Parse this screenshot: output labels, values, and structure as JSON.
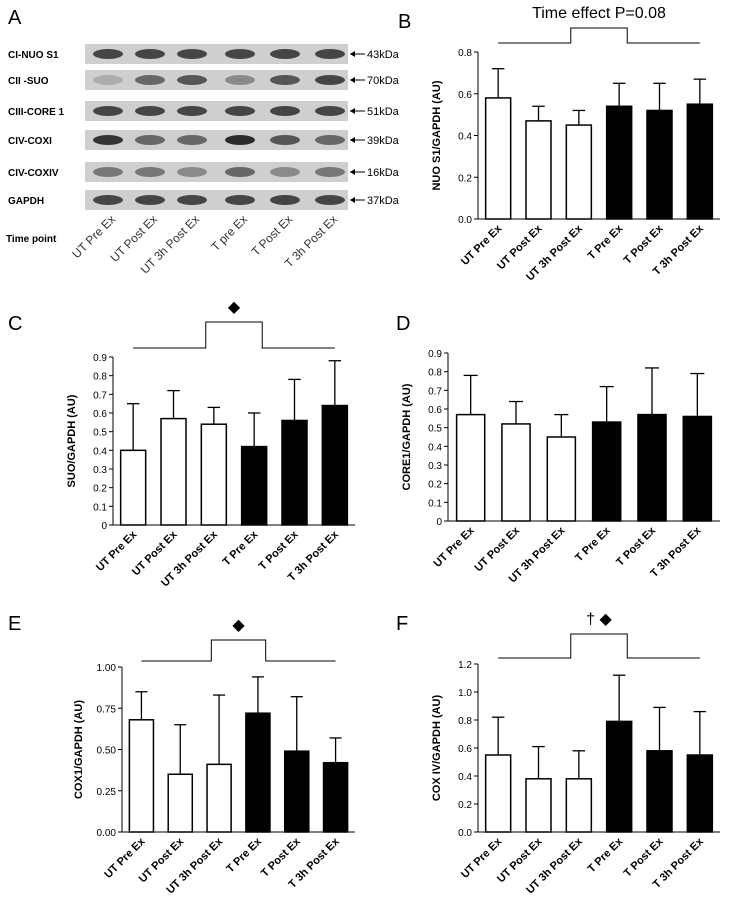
{
  "blot": {
    "panel_label": "A",
    "time_label": "Time point",
    "rows": [
      {
        "label": "CI-NUO S1",
        "size": "43kDa"
      },
      {
        "label": "CII -SUO",
        "size": "70kDa"
      },
      {
        "label": "CIII-CORE 1",
        "size": "51kDa"
      },
      {
        "label": "CIV-COXI",
        "size": "39kDa"
      },
      {
        "label": "CIV-COXIV",
        "size": "16kDa"
      },
      {
        "label": "GAPDH",
        "size": "37kDa"
      }
    ],
    "lanes": [
      "UT Pre Ex",
      "UT Post Ex",
      "UT 3h Post Ex",
      "T pre Ex",
      "T Post Ex",
      "T 3h Post Ex"
    ]
  },
  "chart_data": [
    {
      "type": "bar",
      "panel_label": "B",
      "annotation": "Time effect P=0.08",
      "ylabel": "NUO S1/GAPDH (AU)",
      "categories": [
        "UT Pre Ex",
        "UT Post Ex",
        "UT 3h Post Ex",
        "T Pre Ex",
        "T Post Ex",
        "T 3h Post Ex"
      ],
      "values": [
        0.58,
        0.47,
        0.45,
        0.54,
        0.52,
        0.55
      ],
      "errors": [
        0.14,
        0.07,
        0.07,
        0.11,
        0.13,
        0.12
      ],
      "colors": [
        "#ffffff",
        "#ffffff",
        "#ffffff",
        "#000000",
        "#000000",
        "#000000"
      ],
      "ylim": [
        0,
        0.8
      ],
      "yticks": [
        {
          "value": 0,
          "label": "0.0"
        },
        0.2,
        0.4,
        0.6,
        0.8
      ]
    },
    {
      "type": "bar",
      "panel_label": "C",
      "annotation": "◆",
      "ylabel": "SUO/GAPDH (AU)",
      "categories": [
        "UT Pre Ex",
        "UT Post Ex",
        "UT 3h Post Ex",
        "T Pre Ex",
        "T Post Ex",
        "T 3h Post Ex"
      ],
      "values": [
        0.4,
        0.57,
        0.54,
        0.42,
        0.56,
        0.64
      ],
      "errors": [
        0.25,
        0.15,
        0.09,
        0.18,
        0.22,
        0.24
      ],
      "colors": [
        "#ffffff",
        "#ffffff",
        "#ffffff",
        "#000000",
        "#000000",
        "#000000"
      ],
      "ylim": [
        0,
        0.9
      ],
      "yticks": [
        0,
        0.1,
        0.2,
        0.3,
        0.4,
        0.5,
        0.6,
        0.7,
        0.8,
        0.9
      ]
    },
    {
      "type": "bar",
      "panel_label": "D",
      "ylabel": "CORE1/GAPDH (AU)",
      "categories": [
        "UT Pre Ex",
        "UT Post Ex",
        "UT 3h Post Ex",
        "T Pre Ex",
        "T Post Ex",
        "T 3h Post Ex"
      ],
      "values": [
        0.57,
        0.52,
        0.45,
        0.53,
        0.57,
        0.56
      ],
      "errors": [
        0.21,
        0.12,
        0.12,
        0.19,
        0.25,
        0.23
      ],
      "colors": [
        "#ffffff",
        "#ffffff",
        "#ffffff",
        "#000000",
        "#000000",
        "#000000"
      ],
      "ylim": [
        0,
        0.9
      ],
      "yticks": [
        0,
        0.1,
        0.2,
        0.3,
        0.4,
        0.5,
        0.6,
        0.7,
        0.8,
        0.9
      ]
    },
    {
      "type": "bar",
      "panel_label": "E",
      "annotation": "◆",
      "ylabel": "COX1/GAPDH (AU)",
      "categories": [
        "UT Pre Ex",
        "UT Post Ex",
        "UT 3h Post Ex",
        "T Pre Ex",
        "T Post Ex",
        "T 3h Post Ex"
      ],
      "values": [
        0.68,
        0.35,
        0.41,
        0.72,
        0.49,
        0.42
      ],
      "errors": [
        0.17,
        0.3,
        0.42,
        0.22,
        0.33,
        0.15
      ],
      "colors": [
        "#ffffff",
        "#ffffff",
        "#ffffff",
        "#000000",
        "#000000",
        "#000000"
      ],
      "ylim": [
        0,
        1
      ],
      "yticks": [
        {
          "value": 0,
          "label": "0.00"
        },
        {
          "value": 0.25,
          "label": "0.25"
        },
        {
          "value": 0.5,
          "label": "0.50"
        },
        {
          "value": 0.75,
          "label": "0.75"
        },
        {
          "value": 1,
          "label": "1.00"
        }
      ]
    },
    {
      "type": "bar",
      "panel_label": "F",
      "annotation": "† ◆",
      "ylabel": "COX IV/GAPDH (AU)",
      "categories": [
        "UT Pre Ex",
        "UT Post Ex",
        "UT 3h Post Ex",
        "T Pre Ex",
        "T Post Ex",
        "T 3h Post Ex"
      ],
      "values": [
        0.55,
        0.38,
        0.38,
        0.79,
        0.58,
        0.55
      ],
      "errors": [
        0.27,
        0.23,
        0.2,
        0.33,
        0.31,
        0.31
      ],
      "colors": [
        "#ffffff",
        "#ffffff",
        "#ffffff",
        "#000000",
        "#000000",
        "#000000"
      ],
      "ylim": [
        0,
        1.2
      ],
      "yticks": [
        {
          "value": 0,
          "label": "0.0"
        },
        0.2,
        0.4,
        0.6,
        0.8,
        {
          "value": 1,
          "label": "1.0"
        },
        1.2
      ]
    }
  ]
}
